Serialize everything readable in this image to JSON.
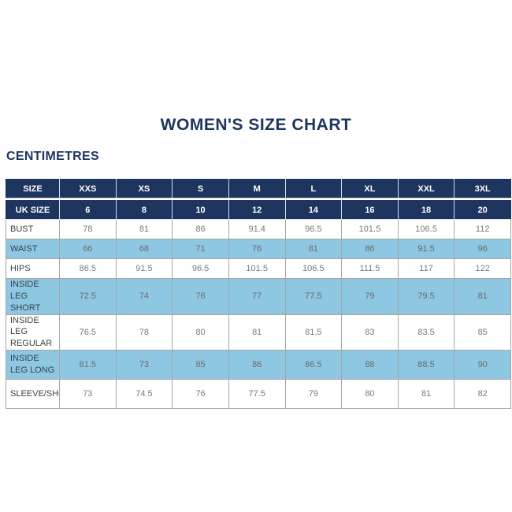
{
  "page": {
    "title": "WOMEN'S SIZE CHART",
    "units_label": "CENTIMETRES"
  },
  "colors": {
    "navy_header": "#1e3560",
    "light_blue_row": "#8ec7e2",
    "value_text": "#7a7a7a",
    "label_text": "#3f3f3f",
    "cell_border": "#a6a6a6",
    "header_text": "#ffffff"
  },
  "chart_data": {
    "type": "table",
    "title": "WOMEN'S SIZE CHART",
    "units": "CENTIMETRES",
    "columns": [
      "SIZE",
      "XXS",
      "XS",
      "S",
      "M",
      "L",
      "XL",
      "XXL",
      "3XL"
    ],
    "uk_size_row": {
      "label": "UK SIZE",
      "values": [
        "6",
        "8",
        "10",
        "12",
        "14",
        "16",
        "18",
        "20"
      ]
    },
    "rows": [
      {
        "label": "BUST",
        "shaded": false,
        "values": [
          "78",
          "81",
          "86",
          "91.4",
          "96.5",
          "101.5",
          "106.5",
          "112"
        ]
      },
      {
        "label": "WAIST",
        "shaded": true,
        "values": [
          "66",
          "68",
          "71",
          "76",
          "81",
          "86",
          "91.5",
          "96"
        ]
      },
      {
        "label": "HIPS",
        "shaded": false,
        "values": [
          "86.5",
          "91.5",
          "96.5",
          "101.5",
          "106.5",
          "111.5",
          "117",
          "122"
        ]
      },
      {
        "label": "INSIDE LEG SHORT",
        "shaded": true,
        "values": [
          "72.5",
          "74",
          "76",
          "77",
          "77.5",
          "79",
          "79.5",
          "81"
        ]
      },
      {
        "label": "INSIDE LEG REGULAR",
        "shaded": false,
        "values": [
          "76.5",
          "78",
          "80",
          "81",
          "81.5",
          "83",
          "83.5",
          "85"
        ]
      },
      {
        "label": "INSIDE LEG LONG",
        "shaded": true,
        "values": [
          "81.5",
          "73",
          "85",
          "86",
          "86.5",
          "88",
          "88.5",
          "90"
        ]
      },
      {
        "label": "SLEEVE/SHOULDER",
        "shaded": false,
        "values": [
          "73",
          "74.5",
          "76",
          "77.5",
          "79",
          "80",
          "81",
          "82"
        ]
      }
    ]
  }
}
